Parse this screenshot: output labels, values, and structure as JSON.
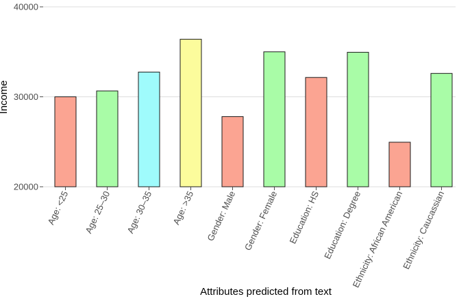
{
  "chart_data": {
    "type": "bar",
    "title": "",
    "xlabel": "Attributes predicted from text",
    "ylabel": "Income",
    "ylim": [
      20000,
      40000
    ],
    "yticks": [
      20000,
      30000,
      40000
    ],
    "ytick_labels": [
      "20000",
      "30000",
      "40000"
    ],
    "grid": "horizontal",
    "legend": "none",
    "categories": [
      "Age: <25",
      "Age: 25–30",
      "Age: 30–35",
      "Age: >35",
      "Gender: Male",
      "Gender: Female",
      "Education: HS",
      "Education: Degree",
      "Ethnicity: African American",
      "Ethnicity: Caucassian"
    ],
    "values": [
      30000,
      30650,
      32750,
      36400,
      27800,
      35000,
      32150,
      34950,
      24950,
      32600
    ],
    "bar_colors": [
      "#fba492",
      "#a9fca7",
      "#9ffbfc",
      "#fcfc9c",
      "#fba492",
      "#a9fca7",
      "#fba492",
      "#a9fca7",
      "#fba492",
      "#a9fca7"
    ],
    "bar_outline_color": "#1a1a1a",
    "grid_color": "#dddddd"
  }
}
